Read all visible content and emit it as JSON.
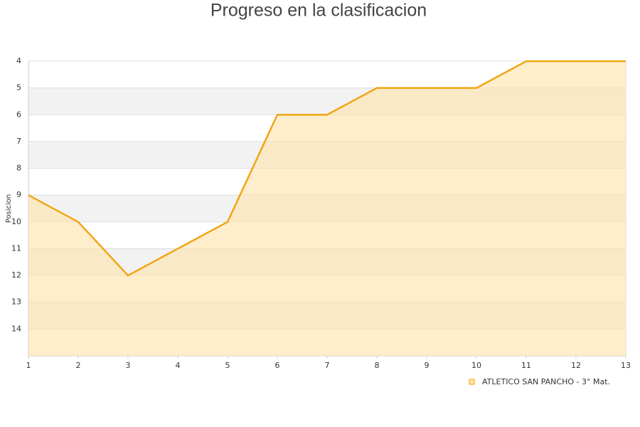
{
  "chart_data": {
    "type": "area",
    "title": "Progreso en la clasificacion",
    "y_label": "Posicion",
    "x": [
      1,
      2,
      3,
      4,
      5,
      6,
      7,
      8,
      9,
      10,
      11,
      12,
      13
    ],
    "series": [
      {
        "name": "ATLETICO SAN PANCHO - 3° Mat.",
        "color": "#f2a516",
        "fill": "#ffe3a8",
        "values": [
          9,
          10,
          12,
          11,
          10,
          6,
          6,
          5,
          5,
          5,
          4,
          4,
          4
        ]
      }
    ],
    "xlim": [
      1,
      13
    ],
    "xticks": [
      1,
      2,
      3,
      4,
      5,
      6,
      7,
      8,
      9,
      10,
      11,
      12,
      13
    ],
    "ylim": [
      4,
      15
    ],
    "yticks": [
      4,
      5,
      6,
      7,
      8,
      9,
      10,
      11,
      12,
      13,
      14
    ],
    "y_reversed": true,
    "grid": true,
    "legend": "bottom-right"
  }
}
